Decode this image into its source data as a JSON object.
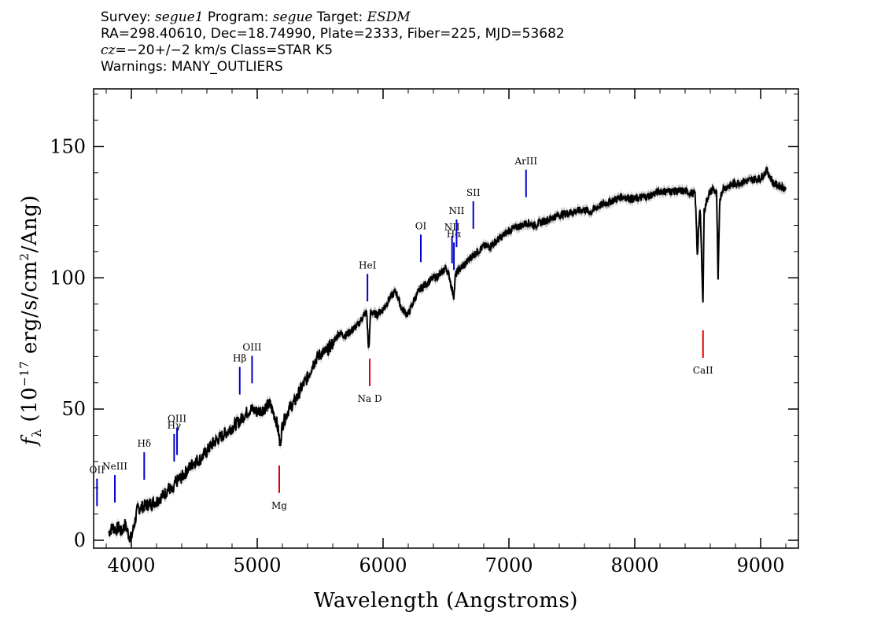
{
  "header": {
    "line1": {
      "p1": "Survey: ",
      "survey": "segue1",
      "p2": " Program: ",
      "program": "segue",
      "p3": " Target: ",
      "target": "ESDM"
    },
    "line2": "RA=298.40610, Dec=18.74990, Plate=2333, Fiber=225, MJD=53682",
    "line3": {
      "cz": "cz",
      "rest": "=−20+/−2 km/s Class=STAR K5"
    },
    "line4": "Warnings: MANY_OUTLIERS"
  },
  "chart_data": {
    "type": "line",
    "xlabel": "Wavelength (Angstroms)",
    "ylabel": "f_λ (10^-17 erg/s/cm^2/Ang)",
    "xlim": [
      3700,
      9300
    ],
    "ylim": [
      -3,
      172
    ],
    "xticks": [
      4000,
      5000,
      6000,
      7000,
      8000,
      9000
    ],
    "xtick_labels": [
      "4000",
      "5000",
      "6000",
      "7000",
      "8000",
      "9000"
    ],
    "yticks": [
      0,
      50,
      100,
      150
    ],
    "ytick_labels": [
      "0",
      "50",
      "100",
      "150"
    ],
    "grid": false,
    "colors": {
      "flux": "#000000",
      "error": "#a8a8a8",
      "emission": "#0000cc",
      "absorption": "#dd0000"
    },
    "series": [
      {
        "x": [
          3820,
          3850,
          3880,
          3900,
          3920,
          3950,
          3980,
          4000,
          4050,
          4100,
          4150,
          4200,
          4250,
          4300,
          4330,
          4350,
          4400,
          4450,
          4500,
          4550,
          4600,
          4650,
          4700,
          4750,
          4800,
          4850,
          4870,
          4900,
          4950,
          5000,
          5050,
          5100,
          5150,
          5170,
          5180,
          5200,
          5250,
          5300,
          5350,
          5400,
          5450,
          5500,
          5550,
          5600,
          5650,
          5700,
          5750,
          5800,
          5850,
          5870,
          5885,
          5895,
          5900,
          5950,
          6000,
          6050,
          6100,
          6150,
          6200,
          6250,
          6300,
          6350,
          6400,
          6450,
          6500,
          6530,
          6545,
          6563,
          6575,
          6600,
          6650,
          6700,
          6750,
          6800,
          6850,
          6900,
          6950,
          7000,
          7050,
          7100,
          7150,
          7200,
          7300,
          7400,
          7500,
          7600,
          7650,
          7700,
          7800,
          7900,
          8000,
          8100,
          8200,
          8300,
          8400,
          8480,
          8498,
          8505,
          8520,
          8542,
          8550,
          8580,
          8620,
          8650,
          8662,
          8675,
          8700,
          8800,
          8900,
          9000,
          9050,
          9100,
          9200
        ],
        "y": [
          3,
          5,
          4,
          5,
          3,
          6,
          2,
          1,
          12,
          13,
          14,
          15,
          17,
          20,
          18,
          22,
          24,
          27,
          30,
          31,
          34,
          37,
          39,
          41,
          43,
          45,
          46,
          48,
          50,
          49,
          50,
          52,
          46,
          41,
          36,
          44,
          50,
          53,
          58,
          62,
          68,
          71,
          72,
          75,
          79,
          78,
          80,
          82,
          86,
          87,
          72,
          80,
          87,
          86,
          88,
          92,
          95,
          88,
          86,
          92,
          96,
          98,
          100,
          101,
          104,
          100,
          96,
          93,
          101,
          103,
          105,
          108,
          110,
          112,
          112,
          114,
          116,
          118,
          119,
          120,
          121,
          120,
          122,
          124,
          125,
          126,
          125,
          127,
          129,
          131,
          130,
          131,
          133,
          133,
          133,
          132,
          108,
          118,
          126,
          90,
          125,
          131,
          134,
          132,
          99,
          130,
          134,
          136,
          137,
          138,
          141,
          136,
          134
        ]
      }
    ],
    "annotations": [
      {
        "text": "OII",
        "x": 3727,
        "kind": "emission"
      },
      {
        "text": "NeIII",
        "x": 3869,
        "kind": "emission"
      },
      {
        "text": "Hδ",
        "x": 4102,
        "kind": "emission"
      },
      {
        "text": "Hγ",
        "x": 4340,
        "kind": "emission"
      },
      {
        "text": "OIII",
        "x": 4363,
        "kind": "emission"
      },
      {
        "text": "Hβ",
        "x": 4861,
        "kind": "emission"
      },
      {
        "text": "OIII",
        "x": 4959,
        "kind": "emission"
      },
      {
        "text": "HeI",
        "x": 5876,
        "kind": "emission"
      },
      {
        "text": "OI",
        "x": 6300,
        "kind": "emission"
      },
      {
        "text": "NII",
        "x": 6548,
        "kind": "emission"
      },
      {
        "text": "Hα",
        "x": 6563,
        "kind": "emission"
      },
      {
        "text": "NII",
        "x": 6584,
        "kind": "emission"
      },
      {
        "text": "SII",
        "x": 6717,
        "kind": "emission"
      },
      {
        "text": "ArIII",
        "x": 7136,
        "kind": "emission"
      },
      {
        "text": "Mg",
        "x": 5175,
        "kind": "absorption"
      },
      {
        "text": "Na D",
        "x": 5894,
        "kind": "absorption"
      },
      {
        "text": "CaII",
        "x": 8542,
        "kind": "absorption"
      }
    ]
  }
}
